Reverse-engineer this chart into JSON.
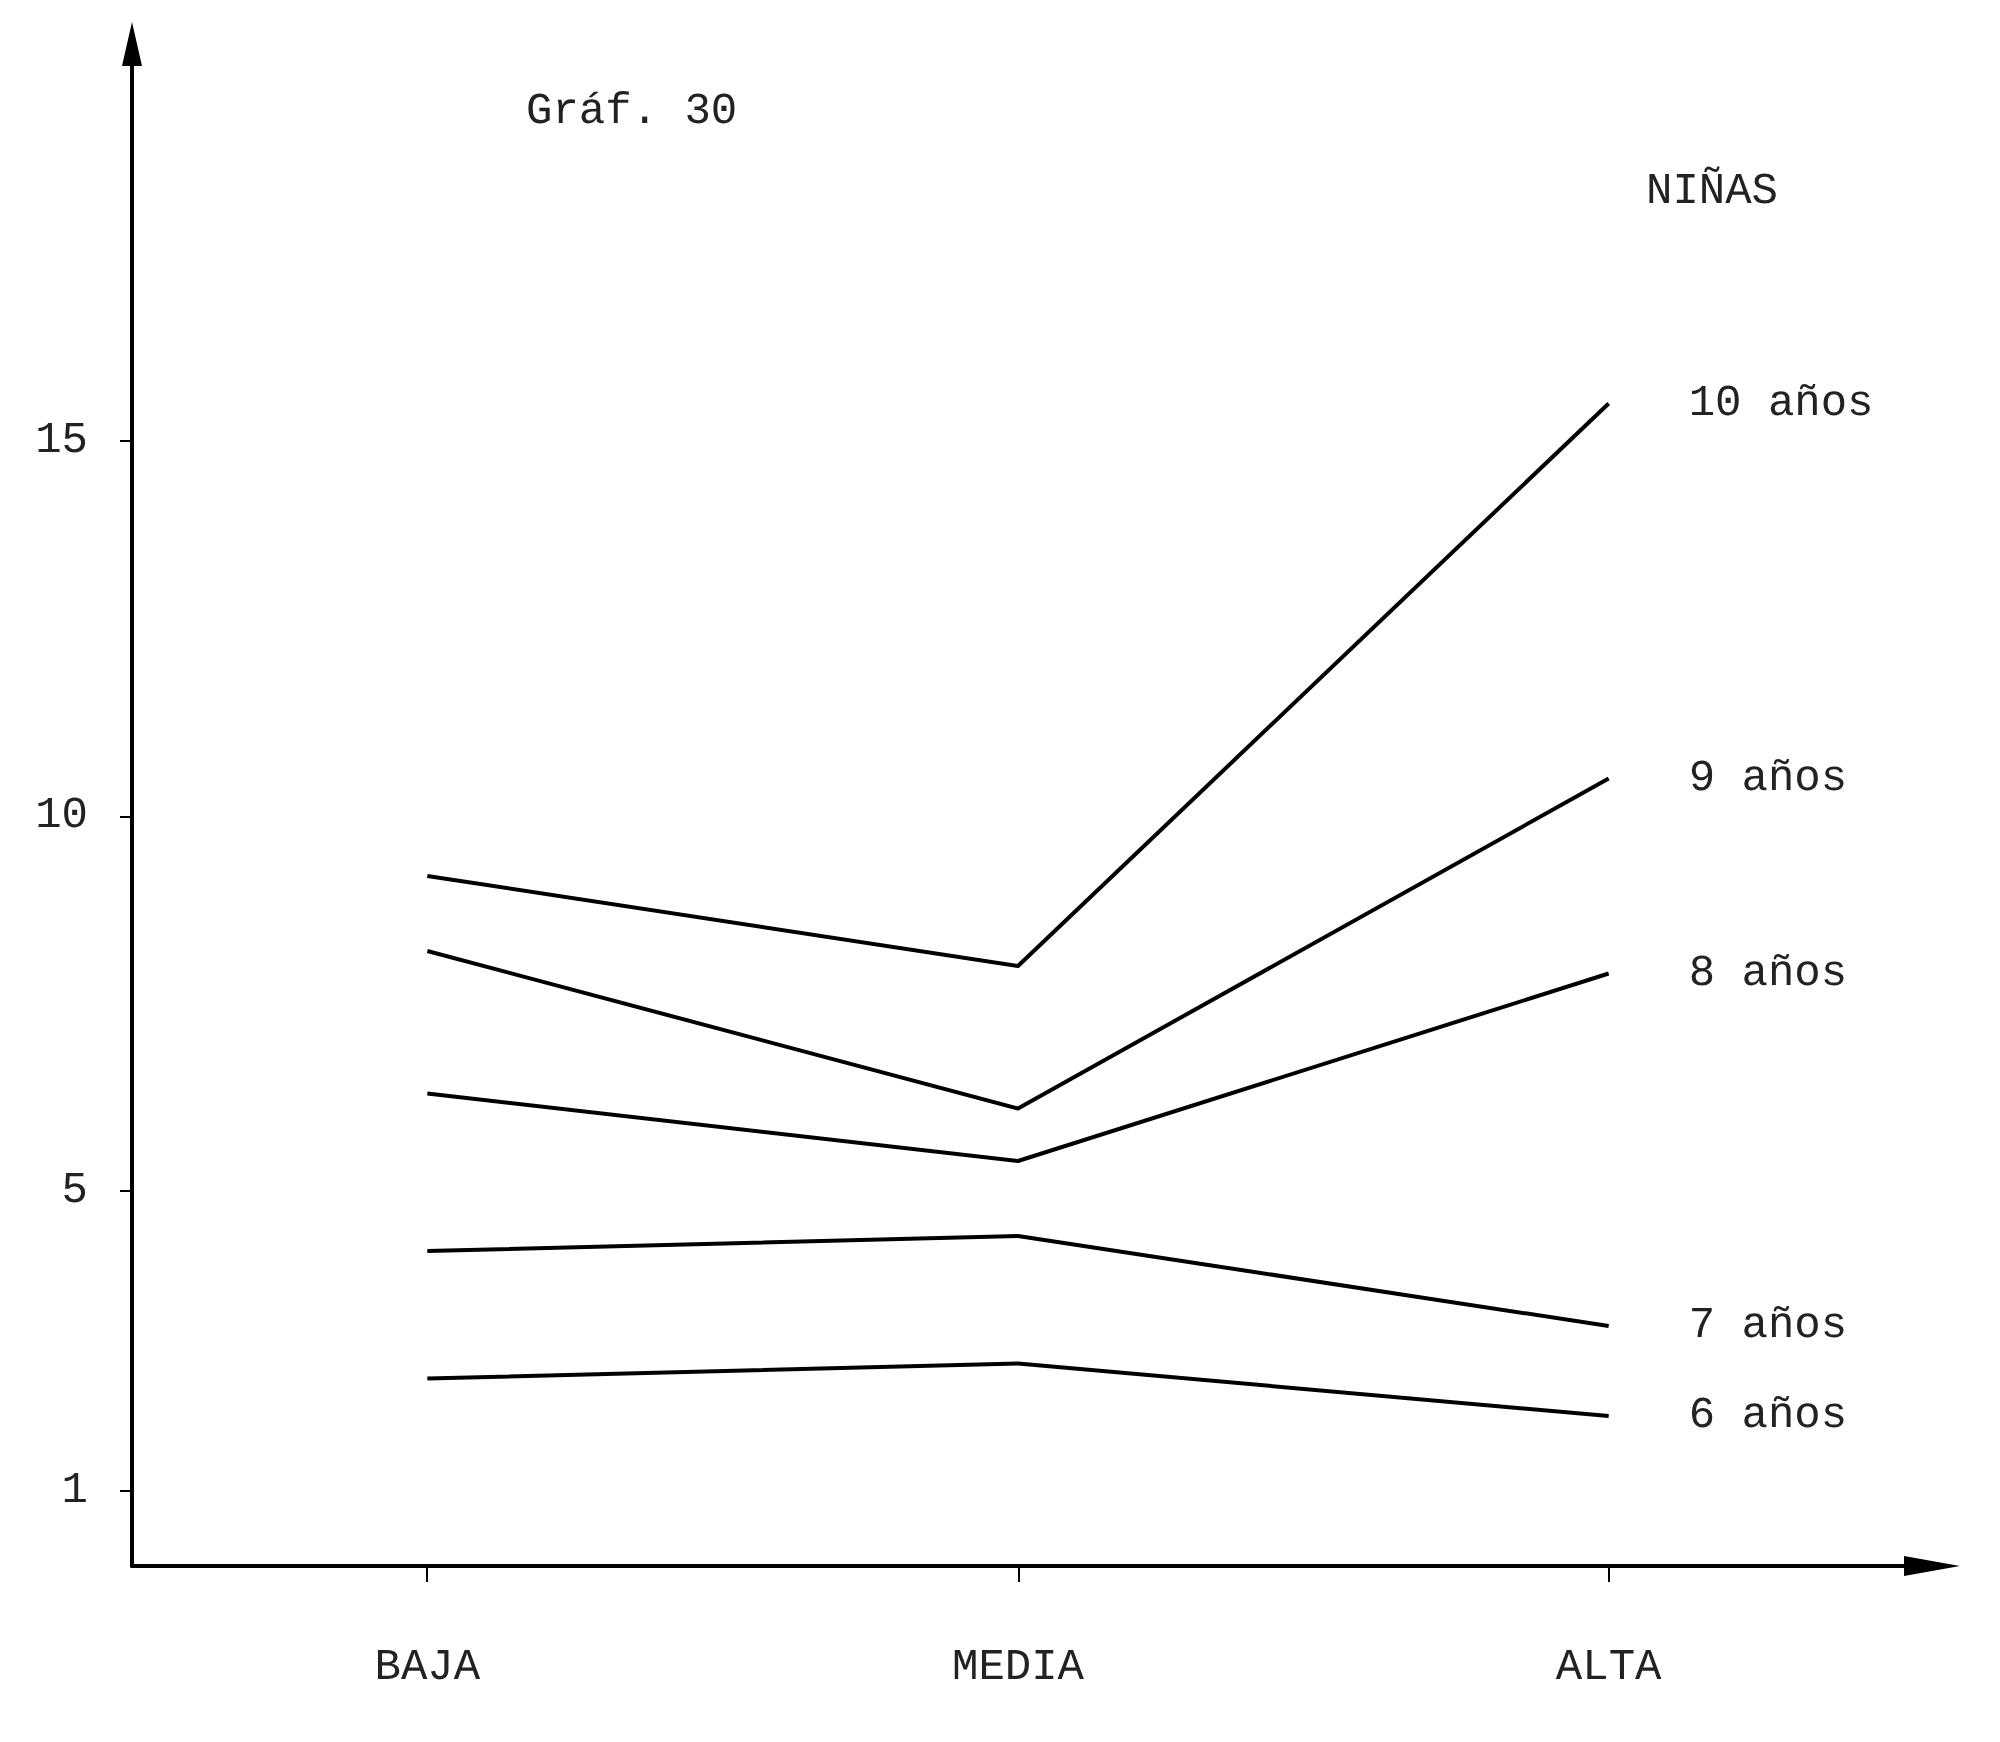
{
  "chart_data": {
    "type": "line",
    "title": "Gráf. 30",
    "subtitle": "NIÑAS",
    "categories": [
      "BAJA",
      "MEDIA",
      "ALTA"
    ],
    "series": [
      {
        "name": "10 años",
        "color": "#000000",
        "values": [
          9.2,
          8.0,
          15.5
        ]
      },
      {
        "name": "9 años",
        "color": "#000000",
        "values": [
          8.2,
          6.1,
          10.5
        ]
      },
      {
        "name": "8 años",
        "color": "#000000",
        "values": [
          6.3,
          5.4,
          7.9
        ]
      },
      {
        "name": "7 años",
        "color": "#000000",
        "values": [
          4.2,
          4.4,
          3.2
        ]
      },
      {
        "name": "6 años",
        "color": "#000000",
        "values": [
          2.5,
          2.7,
          2.0
        ]
      }
    ],
    "ylim": [
      0,
      20
    ],
    "yticks": [
      1,
      5,
      10,
      15
    ],
    "grid": false,
    "legend": false,
    "marker": "none",
    "line_style": "solid"
  }
}
